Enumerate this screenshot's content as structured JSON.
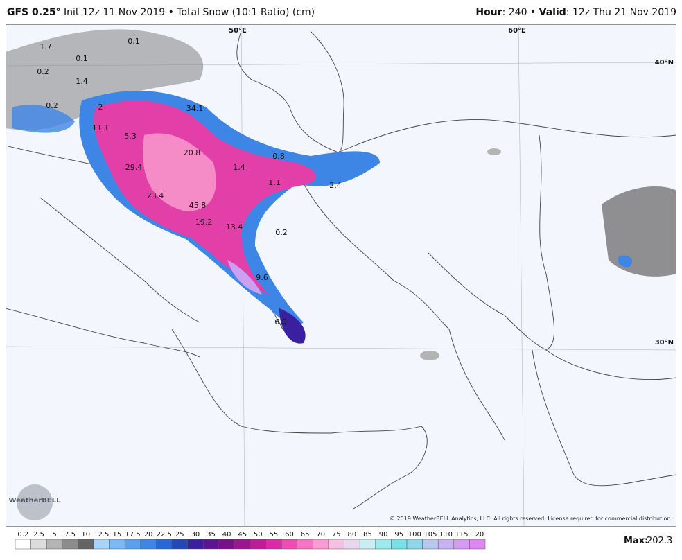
{
  "header": {
    "model": "GFS 0.25°",
    "subtitle": "Init 12z 11 Nov 2019 • Total Snow (10:1 Ratio) (cm)",
    "hour_label": "Hour",
    "hour": ": 240",
    "separator": "•",
    "valid_label": "Valid",
    "valid": ": 12z Thu 21 Nov 2019"
  },
  "map": {
    "grid_labels": [
      "50°E",
      "60°E",
      "40°N",
      "30°N"
    ],
    "annotations": [
      "0.1",
      "1.7",
      "0.1",
      "0.2",
      "1.4",
      "0.2",
      "2",
      "11.1",
      "5.3",
      "34.1",
      "20.8",
      "0.8",
      "29.4",
      "1.4",
      "1.1",
      "2.4",
      "23.4",
      "45.8",
      "19.2",
      "13.4",
      "0.2",
      "9.6",
      "6.0"
    ],
    "copyright": "© 2019 WeatherBELL Analytics, LLC. All rights reserved. License required for commercial distribution.",
    "logo": "WeatherBELL"
  },
  "legend": {
    "labels": [
      "0.2",
      "2.5",
      "5",
      "7.5",
      "10",
      "12.5",
      "15",
      "17.5",
      "20",
      "22.5",
      "25",
      "30",
      "35",
      "40",
      "45",
      "50",
      "55",
      "60",
      "65",
      "70",
      "75",
      "80",
      "85",
      "90",
      "95",
      "100",
      "105",
      "110",
      "115",
      "120"
    ],
    "colors": [
      "#ffffff",
      "#dcdcdc",
      "#b4b4b4",
      "#8c8c8c",
      "#646464",
      "#a6d4fa",
      "#7cbaf5",
      "#5aa0ef",
      "#3d86e6",
      "#2a66d6",
      "#2048b8",
      "#3a1fa0",
      "#5a1490",
      "#7a0f8a",
      "#9c1490",
      "#be1c98",
      "#de2aa6",
      "#f24bb4",
      "#f873c3",
      "#fa9bd2",
      "#f7c0e2",
      "#e6d6ee",
      "#c8eef2",
      "#9ceaf0",
      "#78e0e8",
      "#8fd6e8",
      "#b7c8f0",
      "#c9b2f2",
      "#d69af2",
      "#dd88f0"
    ],
    "max_label": "Max:",
    "max": "202.3"
  }
}
